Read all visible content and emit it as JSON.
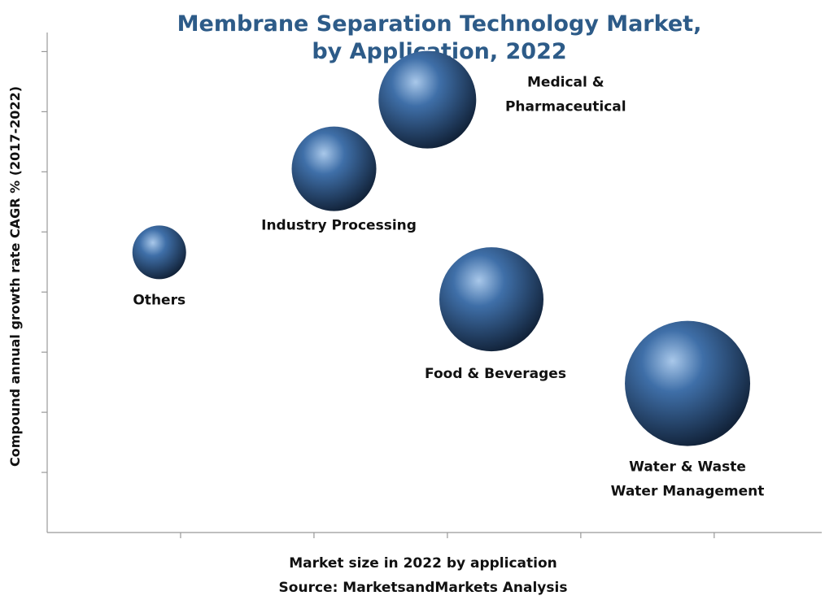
{
  "chart_data": {
    "type": "bubble",
    "title": "Membrane Separation Technology Market, by Application, 2022",
    "x_label": "Market size in 2022 by application",
    "y_label": "Compound annual growth rate CAGR % (2017-2022)",
    "source": "Source: MarketsandMarkets Analysis",
    "categories": [
      "Others",
      "Industry Processing",
      "Medical & Pharmaceutical",
      "Food & Beverages",
      "Water & Waste Water Management"
    ],
    "x": [
      0.84,
      2.15,
      2.85,
      3.33,
      4.8
    ],
    "values": [
      4.66,
      6.05,
      7.2,
      3.88,
      2.48
    ],
    "sizes": [
      33,
      52,
      60,
      64,
      77
    ],
    "color": "#3f6fa8",
    "xlim": [
      0,
      5.8
    ],
    "xticks": [
      1,
      2,
      3,
      4,
      5
    ],
    "ylim": [
      0,
      9
    ],
    "yticks": [
      1,
      2,
      3,
      4,
      5,
      6,
      7,
      8,
      9
    ]
  }
}
